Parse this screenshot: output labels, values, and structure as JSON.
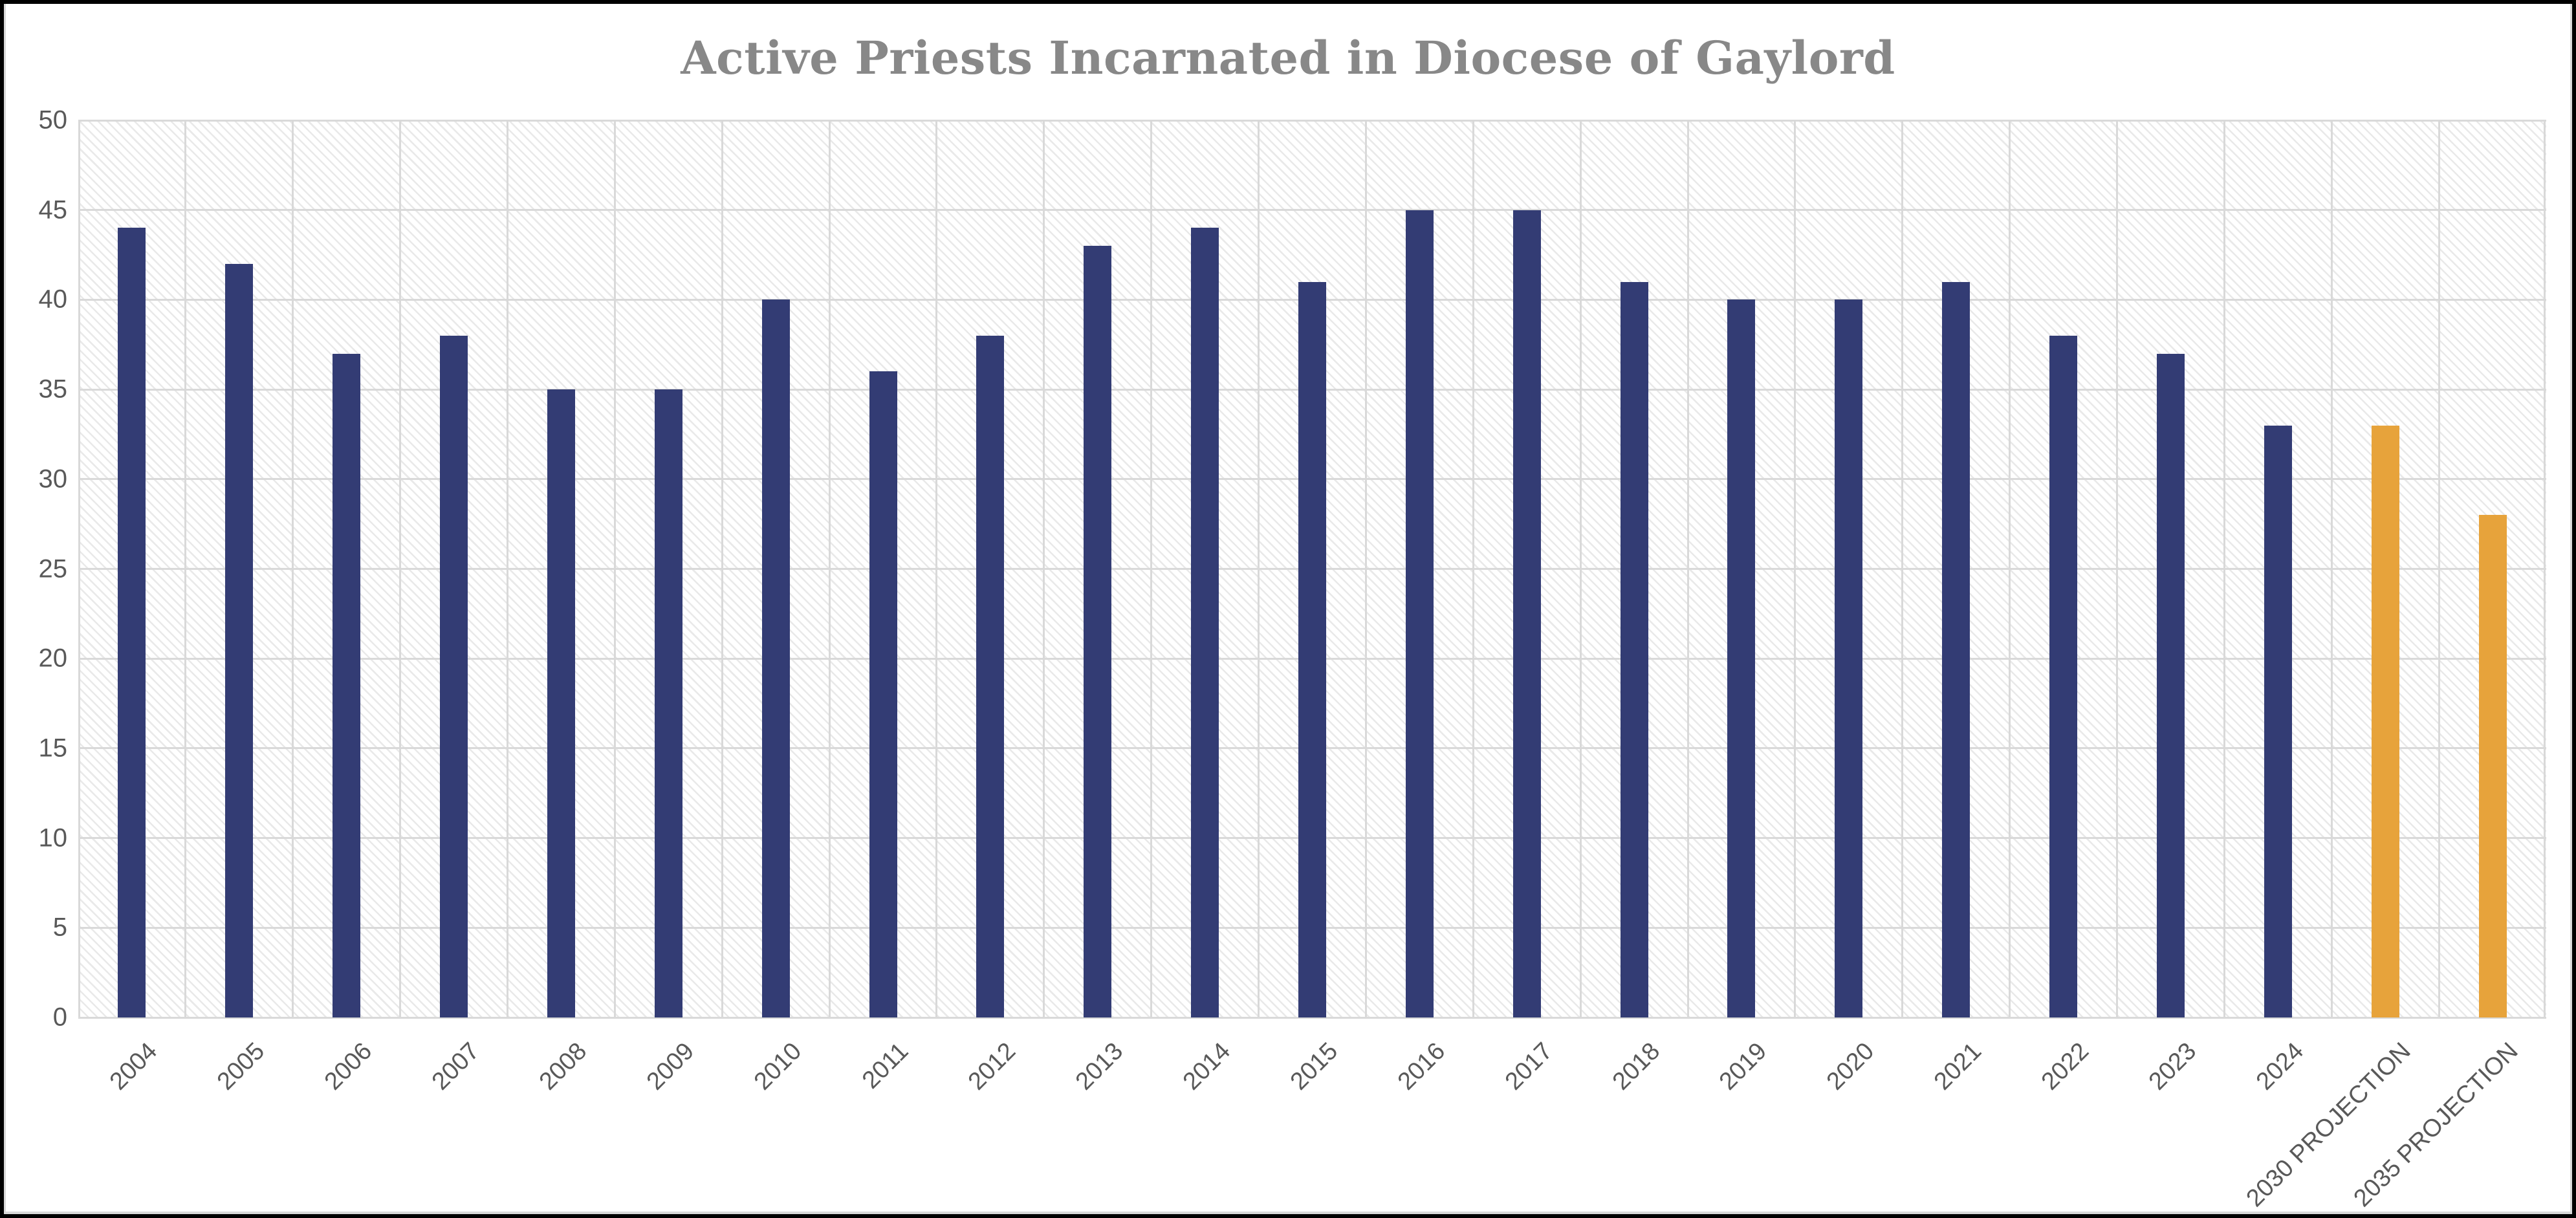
{
  "colors": {
    "bar_actual": "#333C74",
    "bar_projection": "#E7A33B",
    "gridline": "#D9D9D9",
    "axis_text": "#595959",
    "title_text": "#888888",
    "frame_border": "#000000",
    "plot_hatch_line": "#E9E9E9",
    "background": "#FFFFFF"
  },
  "chart_data": {
    "type": "bar",
    "title": "Active Priests Incarnated in Diocese of Gaylord",
    "xlabel": "",
    "ylabel": "",
    "ylim": [
      0,
      50
    ],
    "yticks": [
      0,
      5,
      10,
      15,
      20,
      25,
      30,
      35,
      40,
      45,
      50
    ],
    "grid": true,
    "legend_position": "none",
    "plot_background": "diagonal-hatch",
    "categories": [
      "2004",
      "2005",
      "2006",
      "2007",
      "2008",
      "2009",
      "2010",
      "2011",
      "2012",
      "2013",
      "2014",
      "2015",
      "2016",
      "2017",
      "2018",
      "2019",
      "2020",
      "2021",
      "2022",
      "2023",
      "2024",
      "2030 PROJECTION",
      "2035 PROJECTION"
    ],
    "values": [
      44,
      42,
      37,
      38,
      35,
      35,
      40,
      36,
      38,
      43,
      44,
      41,
      45,
      45,
      41,
      40,
      40,
      41,
      38,
      37,
      33,
      33,
      28
    ],
    "bar_colors": [
      "#333C74",
      "#333C74",
      "#333C74",
      "#333C74",
      "#333C74",
      "#333C74",
      "#333C74",
      "#333C74",
      "#333C74",
      "#333C74",
      "#333C74",
      "#333C74",
      "#333C74",
      "#333C74",
      "#333C74",
      "#333C74",
      "#333C74",
      "#333C74",
      "#333C74",
      "#333C74",
      "#333C74",
      "#E7A33B",
      "#E7A33B"
    ]
  }
}
